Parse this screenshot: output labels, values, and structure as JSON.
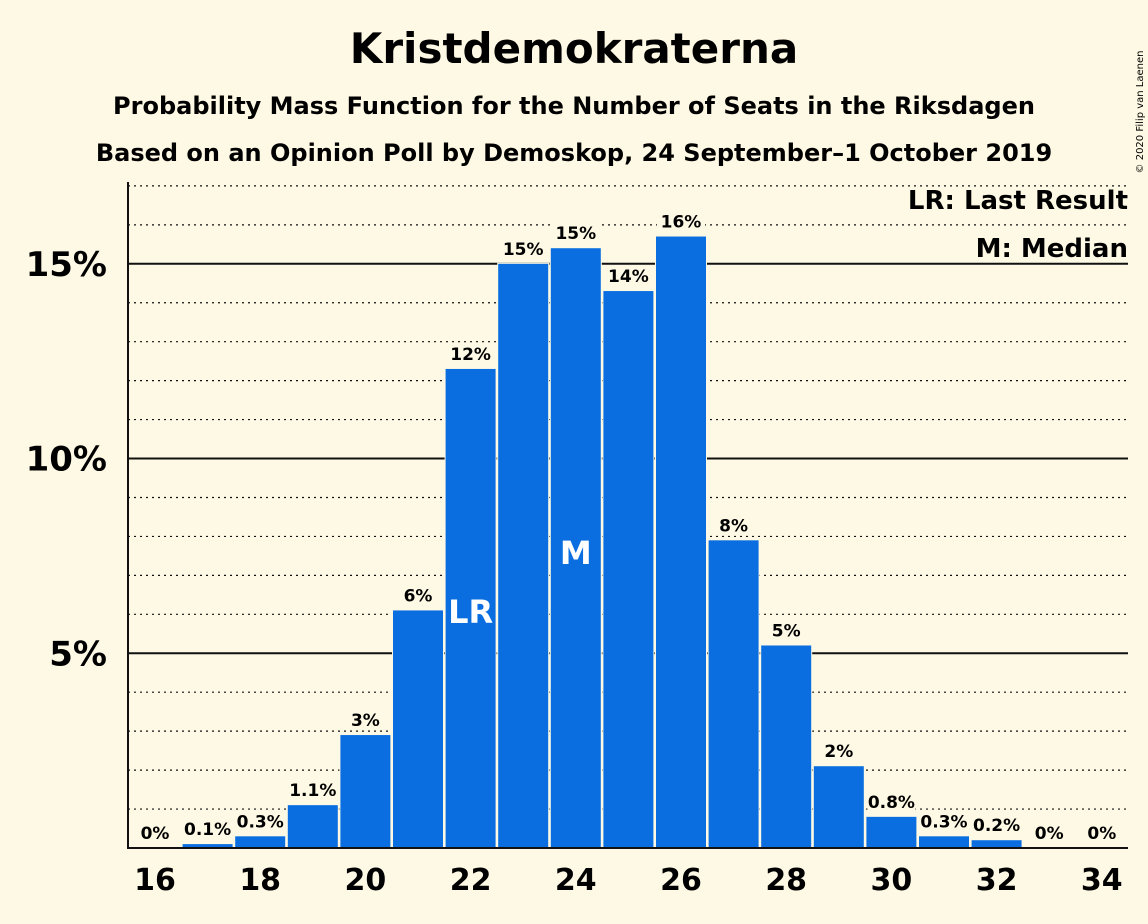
{
  "title": "Kristdemokraterna",
  "subtitle1": "Probability Mass Function for the Number of Seats in the Riksdagen",
  "subtitle2": "Based on an Opinion Poll by Demoskop, 24 September–1 October 2019",
  "copyright": "© 2020 Filip van Laenen",
  "legend": {
    "lr": "LR: Last Result",
    "m": "M: Median"
  },
  "colors": {
    "bar": "#0a6ee1",
    "background": "#fef9e4",
    "text": "#111111"
  },
  "chart_data": {
    "type": "bar",
    "x": [
      16,
      17,
      18,
      19,
      20,
      21,
      22,
      23,
      24,
      25,
      26,
      27,
      28,
      29,
      30,
      31,
      32,
      33,
      34
    ],
    "values": [
      0,
      0.1,
      0.3,
      1.1,
      2.9,
      6.1,
      12.3,
      15.0,
      15.4,
      14.3,
      15.7,
      7.9,
      5.2,
      2.1,
      0.8,
      0.3,
      0.2,
      0,
      0
    ],
    "data_labels": [
      "0%",
      "0.1%",
      "0.3%",
      "1.1%",
      "3%",
      "6%",
      "12%",
      "15%",
      "15%",
      "14%",
      "16%",
      "8%",
      "5%",
      "2%",
      "0.8%",
      "0.3%",
      "0.2%",
      "0%",
      "0%"
    ],
    "x_tick_labels": [
      "16",
      "18",
      "20",
      "22",
      "24",
      "26",
      "28",
      "30",
      "32",
      "34"
    ],
    "x_ticks": [
      16,
      18,
      20,
      22,
      24,
      26,
      28,
      30,
      32,
      34
    ],
    "y_ticks": [
      5,
      10,
      15
    ],
    "y_tick_labels": [
      "5%",
      "10%",
      "15%"
    ],
    "ylim": [
      0,
      17.1
    ],
    "last_result": 22,
    "last_result_label": "LR",
    "median": 24,
    "median_label": "M",
    "grid": true,
    "legend_position": "top-right"
  }
}
